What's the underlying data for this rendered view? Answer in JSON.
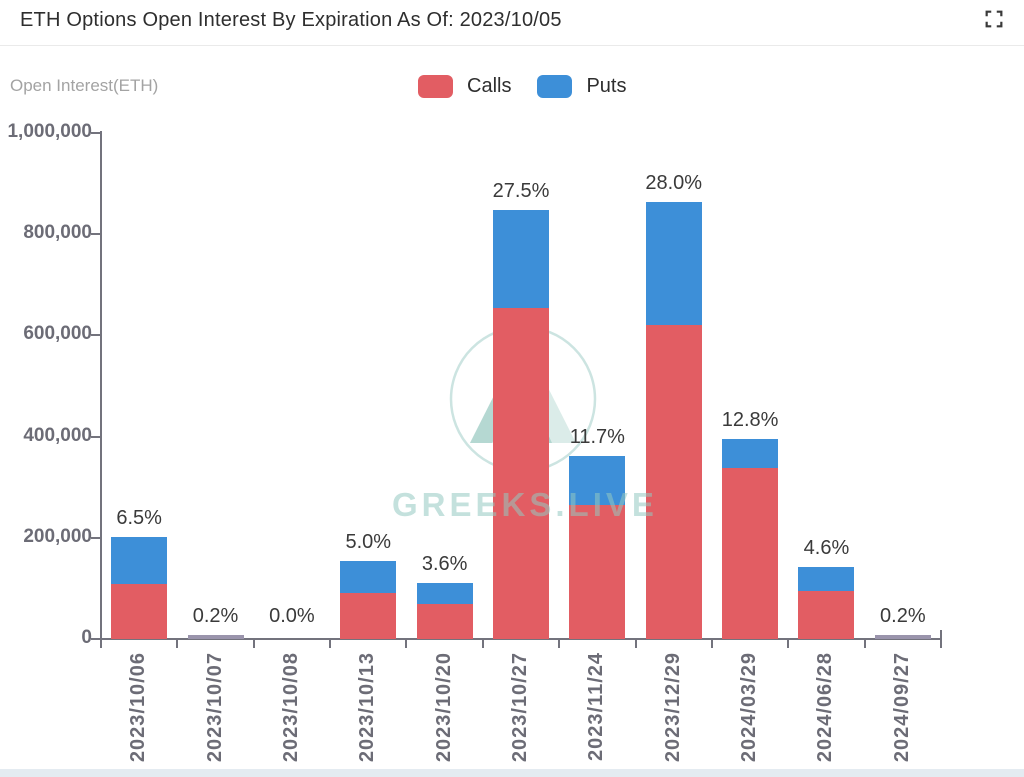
{
  "header": {
    "title": "ETH Options Open Interest By Expiration As Of: 2023/10/05"
  },
  "chart_header": {
    "axis_title": "Open Interest(ETH)",
    "legend": [
      {
        "label": "Calls",
        "color": "#e25d63"
      },
      {
        "label": "Puts",
        "color": "#3d8fd8"
      }
    ]
  },
  "watermark": {
    "text": "GREEKS.LIVE"
  },
  "chart_data": {
    "type": "bar",
    "stacked": true,
    "title": "ETH Options Open Interest By Expiration As Of: 2023/10/05",
    "xlabel": "",
    "ylabel": "Open Interest(ETH)",
    "legend_position": "top",
    "grid": false,
    "ylim": [
      0,
      1000000
    ],
    "ytick_interval": 200000,
    "ytick_labels": [
      "0",
      "200,000",
      "400,000",
      "600,000",
      "800,000",
      "1,000,000"
    ],
    "categories": [
      "2023/10/06",
      "2023/10/07",
      "2023/10/08",
      "2023/10/13",
      "2023/10/20",
      "2023/10/27",
      "2023/11/24",
      "2023/12/29",
      "2024/03/29",
      "2024/06/28",
      "2024/09/27"
    ],
    "series": [
      {
        "name": "Calls",
        "color": "#e25d63",
        "values": [
          108000,
          3500,
          300,
          91000,
          70000,
          655000,
          265000,
          620000,
          337000,
          95000,
          3500
        ]
      },
      {
        "name": "Puts",
        "color": "#3d8fd8",
        "values": [
          94000,
          2500,
          200,
          63000,
          41000,
          193000,
          97000,
          244000,
          58000,
          47000,
          2500
        ]
      }
    ],
    "percent_labels": [
      "6.5%",
      "0.2%",
      "0.0%",
      "5.0%",
      "3.6%",
      "27.5%",
      "11.7%",
      "28.0%",
      "12.8%",
      "4.6%",
      "0.2%"
    ],
    "tiny_bar_color": "#9a94ac"
  }
}
